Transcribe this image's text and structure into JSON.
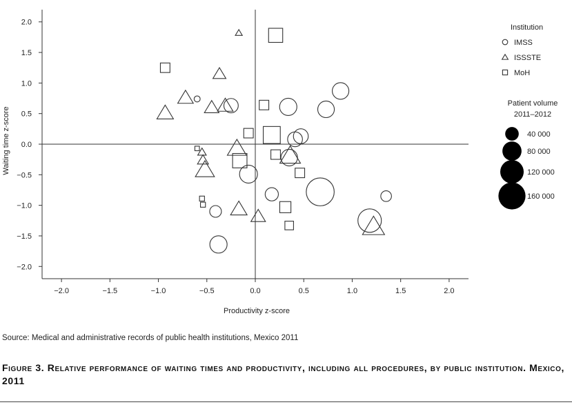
{
  "chart_data": {
    "type": "scatter",
    "title": "",
    "xlabel": "Productivity z-score",
    "ylabel": "Waiting time z-score",
    "xlim": [
      -2.2,
      2.2
    ],
    "ylim": [
      -2.2,
      2.2
    ],
    "xticks": [
      -2.0,
      -1.5,
      -1.0,
      -0.5,
      0.0,
      0.5,
      1.0,
      1.5,
      2.0
    ],
    "yticks": [
      -2.0,
      -1.5,
      -1.0,
      -0.5,
      0.0,
      0.5,
      1.0,
      1.5,
      2.0
    ],
    "xtick_labels": [
      "−2.0",
      "−1.5",
      "−1.0",
      "−0.5",
      "0.0",
      "0.5",
      "1.0",
      "1.5",
      "2.0"
    ],
    "ytick_labels": [
      "−2.0",
      "−1.5",
      "−1.0",
      "−0.5",
      "0.0",
      "0.5",
      "1.0",
      "1.5",
      "2.0"
    ],
    "reference_lines": {
      "x": 0,
      "y": 0
    },
    "grid": false,
    "legend_position": "right",
    "legend_title": "Institution",
    "series": [
      {
        "name": "IMSS",
        "marker": "circle",
        "points": [
          {
            "x": 0.88,
            "y": 0.87,
            "volume": 60000
          },
          {
            "x": -0.25,
            "y": 0.63,
            "volume": 45000
          },
          {
            "x": -0.6,
            "y": 0.74,
            "volume": 8000
          },
          {
            "x": 0.34,
            "y": 0.61,
            "volume": 65000
          },
          {
            "x": 0.73,
            "y": 0.57,
            "volume": 60000
          },
          {
            "x": 0.47,
            "y": 0.13,
            "volume": 48000
          },
          {
            "x": 0.41,
            "y": 0.08,
            "volume": 48000
          },
          {
            "x": 0.35,
            "y": -0.22,
            "volume": 60000
          },
          {
            "x": -0.07,
            "y": -0.49,
            "volume": 70000
          },
          {
            "x": 0.67,
            "y": -0.78,
            "volume": 170000
          },
          {
            "x": 0.17,
            "y": -0.82,
            "volume": 38000
          },
          {
            "x": 1.35,
            "y": -0.85,
            "volume": 25000
          },
          {
            "x": -0.41,
            "y": -1.1,
            "volume": 30000
          },
          {
            "x": 1.18,
            "y": -1.25,
            "volume": 120000
          },
          {
            "x": -0.38,
            "y": -1.64,
            "volume": 65000
          }
        ]
      },
      {
        "name": "ISSSTE",
        "marker": "triangle",
        "points": [
          {
            "x": -0.17,
            "y": 1.82,
            "volume": 8000
          },
          {
            "x": -0.37,
            "y": 1.15,
            "volume": 28000
          },
          {
            "x": -0.72,
            "y": 0.76,
            "volume": 40000
          },
          {
            "x": -0.93,
            "y": 0.51,
            "volume": 45000
          },
          {
            "x": -0.45,
            "y": 0.6,
            "volume": 35000
          },
          {
            "x": -0.31,
            "y": 0.63,
            "volume": 40000
          },
          {
            "x": -0.19,
            "y": -0.07,
            "volume": 60000
          },
          {
            "x": -0.55,
            "y": -0.13,
            "volume": 12000
          },
          {
            "x": -0.54,
            "y": -0.26,
            "volume": 20000
          },
          {
            "x": 0.36,
            "y": -0.19,
            "volume": 70000
          },
          {
            "x": -0.52,
            "y": -0.42,
            "volume": 60000
          },
          {
            "x": -0.17,
            "y": -1.06,
            "volume": 45000
          },
          {
            "x": 0.03,
            "y": -1.18,
            "volume": 35000
          },
          {
            "x": 1.22,
            "y": -1.35,
            "volume": 80000
          }
        ]
      },
      {
        "name": "MoH",
        "marker": "square",
        "points": [
          {
            "x": 0.21,
            "y": 1.78,
            "volume": 48000
          },
          {
            "x": -0.93,
            "y": 1.25,
            "volume": 22000
          },
          {
            "x": 0.09,
            "y": 0.64,
            "volume": 22000
          },
          {
            "x": -0.07,
            "y": 0.18,
            "volume": 22000
          },
          {
            "x": 0.17,
            "y": 0.15,
            "volume": 70000
          },
          {
            "x": -0.6,
            "y": -0.07,
            "volume": 5000
          },
          {
            "x": 0.21,
            "y": -0.17,
            "volume": 22000
          },
          {
            "x": -0.16,
            "y": -0.27,
            "volume": 50000
          },
          {
            "x": 0.46,
            "y": -0.47,
            "volume": 22000
          },
          {
            "x": -0.55,
            "y": -0.89,
            "volume": 6000
          },
          {
            "x": -0.54,
            "y": -0.99,
            "volume": 6000
          },
          {
            "x": 0.31,
            "y": -1.03,
            "volume": 30000
          },
          {
            "x": 0.35,
            "y": -1.33,
            "volume": 18000
          }
        ]
      }
    ],
    "size_legend": {
      "title_lines": [
        "Patient volume",
        "2011–2012"
      ],
      "values": [
        40000,
        80000,
        120000,
        160000
      ],
      "labels": [
        "40 000",
        "80 000",
        "120 000",
        "160 000"
      ]
    }
  },
  "source_note": "Source: Medical and administrative records of public health institutions, Mexico 2011",
  "caption": "Figure 3. Relative performance of waiting times and productivity, including all procedures, by public institution. Mexico, 2011"
}
